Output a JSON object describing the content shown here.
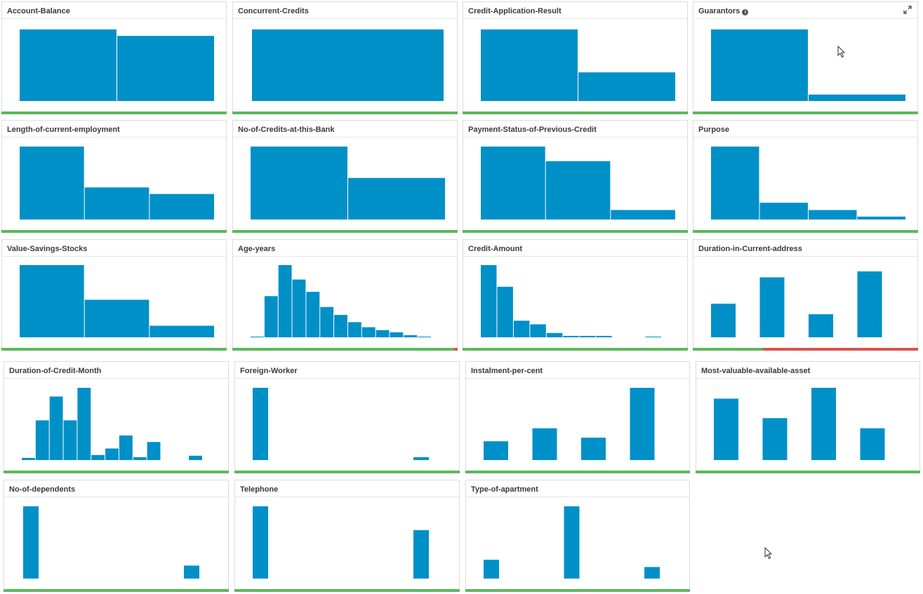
{
  "colors": {
    "bar": "#0090c8",
    "good": "#5cb85c",
    "bad": "#d9534f"
  },
  "cards": [
    {
      "id": "account-balance",
      "title": "Account-Balance",
      "info": false,
      "expand": false,
      "chart_data": {
        "type": "bar",
        "values": [
          100,
          91
        ]
      },
      "quality": [
        [
          "good",
          1
        ]
      ]
    },
    {
      "id": "concurrent-credits",
      "title": "Concurrent-Credits",
      "info": false,
      "expand": false,
      "chart_data": {
        "type": "bar",
        "values": [
          100
        ]
      },
      "quality": [
        [
          "good",
          1
        ]
      ]
    },
    {
      "id": "credit-application-result",
      "title": "Credit-Application-Result",
      "info": false,
      "expand": false,
      "chart_data": {
        "type": "bar",
        "values": [
          100,
          40
        ]
      },
      "quality": [
        [
          "good",
          1
        ]
      ]
    },
    {
      "id": "guarantors",
      "title": "Guarantors",
      "info": true,
      "expand": true,
      "chart_data": {
        "type": "bar",
        "values": [
          100,
          9
        ]
      },
      "quality": [
        [
          "good",
          1
        ]
      ]
    },
    {
      "id": "length-of-current-employment",
      "title": "Length-of-current-employment",
      "info": false,
      "expand": false,
      "chart_data": {
        "type": "bar",
        "values": [
          100,
          44,
          35
        ]
      },
      "quality": [
        [
          "good",
          1
        ]
      ]
    },
    {
      "id": "no-of-credits-at-this-bank",
      "title": "No-of-Credits-at-this-Bank",
      "info": false,
      "expand": false,
      "chart_data": {
        "type": "bar",
        "values": [
          100,
          57
        ]
      },
      "quality": [
        [
          "good",
          1
        ]
      ]
    },
    {
      "id": "payment-status-of-previous-credit",
      "title": "Payment-Status-of-Previous-Credit",
      "info": false,
      "expand": false,
      "chart_data": {
        "type": "bar",
        "values": [
          100,
          80,
          13
        ]
      },
      "quality": [
        [
          "good",
          1
        ]
      ]
    },
    {
      "id": "purpose",
      "title": "Purpose",
      "info": false,
      "expand": false,
      "chart_data": {
        "type": "bar",
        "values": [
          100,
          23,
          13,
          4
        ]
      },
      "quality": [
        [
          "good",
          1
        ]
      ]
    },
    {
      "id": "value-savings-stocks",
      "title": "Value-Savings-Stocks",
      "info": false,
      "expand": false,
      "chart_data": {
        "type": "bar",
        "values": [
          100,
          52,
          16
        ]
      },
      "quality": [
        [
          "good",
          1
        ]
      ]
    },
    {
      "id": "age-years",
      "title": "Age-years",
      "info": false,
      "expand": false,
      "chart_data": {
        "type": "histogram",
        "values": [
          1,
          57,
          100,
          80,
          63,
          42,
          31,
          21,
          14,
          10,
          7,
          3,
          1
        ]
      },
      "quality": [
        [
          "good",
          0.985
        ],
        [
          "bad",
          0.015
        ]
      ]
    },
    {
      "id": "credit-amount",
      "title": "Credit-Amount",
      "info": false,
      "expand": false,
      "chart_data": {
        "type": "histogram",
        "values": [
          100,
          70,
          23,
          18,
          6,
          2,
          2,
          2,
          0,
          0,
          1
        ]
      },
      "quality": [
        [
          "good",
          1
        ]
      ]
    },
    {
      "id": "duration-in-current-address",
      "title": "Duration-in-Current-address",
      "info": false,
      "expand": false,
      "chart_data": {
        "type": "bar",
        "values": [
          51,
          91,
          35,
          100
        ]
      },
      "quality": [
        [
          "good",
          0.31
        ],
        [
          "bad",
          0.69
        ]
      ]
    },
    {
      "id": "duration-of-credit-month",
      "title": "Duration-of-Credit-Month",
      "info": false,
      "expand": false,
      "chart_data": {
        "type": "histogram",
        "values": [
          3,
          55,
          88,
          55,
          100,
          7,
          16,
          34,
          4,
          25,
          0,
          0,
          6
        ]
      },
      "quality": [
        [
          "good",
          1
        ]
      ]
    },
    {
      "id": "foreign-worker",
      "title": "Foreign-Worker",
      "info": false,
      "expand": false,
      "chart_data": {
        "type": "bar",
        "values": [
          100,
          4
        ]
      },
      "quality": [
        [
          "good",
          1
        ]
      ]
    },
    {
      "id": "instalment-per-cent",
      "title": "Instalment-per-cent",
      "info": false,
      "expand": false,
      "chart_data": {
        "type": "bar",
        "values": [
          26,
          44,
          31,
          100
        ]
      },
      "quality": [
        [
          "good",
          1
        ]
      ]
    },
    {
      "id": "most-valuable-available-asset",
      "title": "Most-valuable-available-asset",
      "info": false,
      "expand": false,
      "chart_data": {
        "type": "bar",
        "values": [
          85,
          58,
          100,
          44
        ]
      },
      "quality": [
        [
          "good",
          1
        ]
      ]
    },
    {
      "id": "no-of-dependents",
      "title": "No-of-dependents",
      "info": false,
      "expand": false,
      "chart_data": {
        "type": "bar",
        "values": [
          100,
          18
        ]
      },
      "quality": [
        [
          "good",
          1
        ]
      ]
    },
    {
      "id": "telephone",
      "title": "Telephone",
      "info": false,
      "expand": false,
      "chart_data": {
        "type": "bar",
        "values": [
          100,
          67
        ]
      },
      "quality": [
        [
          "good",
          1
        ]
      ]
    },
    {
      "id": "type-of-apartment",
      "title": "Type-of-apartment",
      "info": false,
      "expand": false,
      "chart_data": {
        "type": "bar",
        "values": [
          26,
          100,
          16
        ]
      },
      "quality": [
        [
          "good",
          1
        ]
      ]
    }
  ]
}
